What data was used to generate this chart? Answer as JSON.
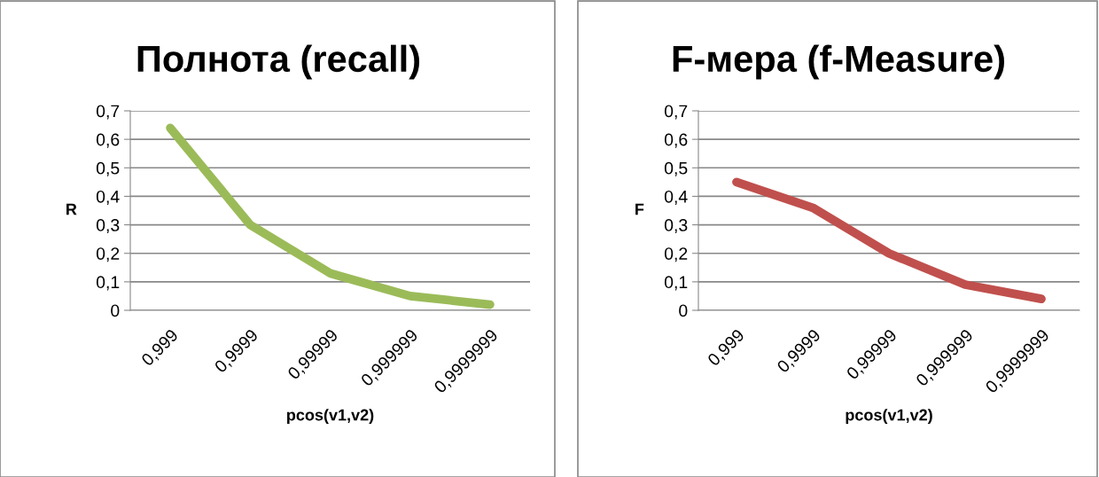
{
  "chart_data": [
    {
      "type": "line",
      "title": "Полнота (recall)",
      "xlabel": "pcos(v1,v2)",
      "ylabel": "R",
      "categories": [
        "0,999",
        "0,9999",
        "0,99999",
        "0,999999",
        "0,9999999"
      ],
      "series": [
        {
          "color": "#9bbb59",
          "values": [
            0.64,
            0.3,
            0.13,
            0.05,
            0.02
          ]
        }
      ],
      "ylim": [
        0,
        0.7
      ],
      "yticks": [
        0,
        {
          "value": 0.1,
          "label": "0,1"
        },
        {
          "value": 0.2,
          "label": "0,2"
        },
        {
          "value": 0.3,
          "label": "0,3"
        },
        {
          "value": 0.4,
          "label": "0,4"
        },
        {
          "value": 0.5,
          "label": "0,5"
        },
        {
          "value": 0.6,
          "label": "0,6"
        },
        {
          "value": 0.7,
          "label": "0,7"
        }
      ],
      "grid": "y",
      "marker": "none",
      "line_style": "solid"
    },
    {
      "type": "line",
      "title": "F-мера (f-Measure)",
      "xlabel": "pcos(v1,v2)",
      "ylabel": "F",
      "categories": [
        "0,999",
        "0,9999",
        "0,99999",
        "0,999999",
        "0,9999999"
      ],
      "series": [
        {
          "color": "#c0504d",
          "values": [
            0.45,
            0.36,
            0.2,
            0.09,
            0.04
          ]
        }
      ],
      "ylim": [
        0,
        0.7
      ],
      "yticks": [
        0,
        {
          "value": 0.1,
          "label": "0,1"
        },
        {
          "value": 0.2,
          "label": "0,2"
        },
        {
          "value": 0.3,
          "label": "0,3"
        },
        {
          "value": 0.4,
          "label": "0,4"
        },
        {
          "value": 0.5,
          "label": "0,5"
        },
        {
          "value": 0.6,
          "label": "0,6"
        },
        {
          "value": 0.7,
          "label": "0,7"
        }
      ],
      "grid": "y",
      "marker": "none",
      "line_style": "solid"
    }
  ]
}
